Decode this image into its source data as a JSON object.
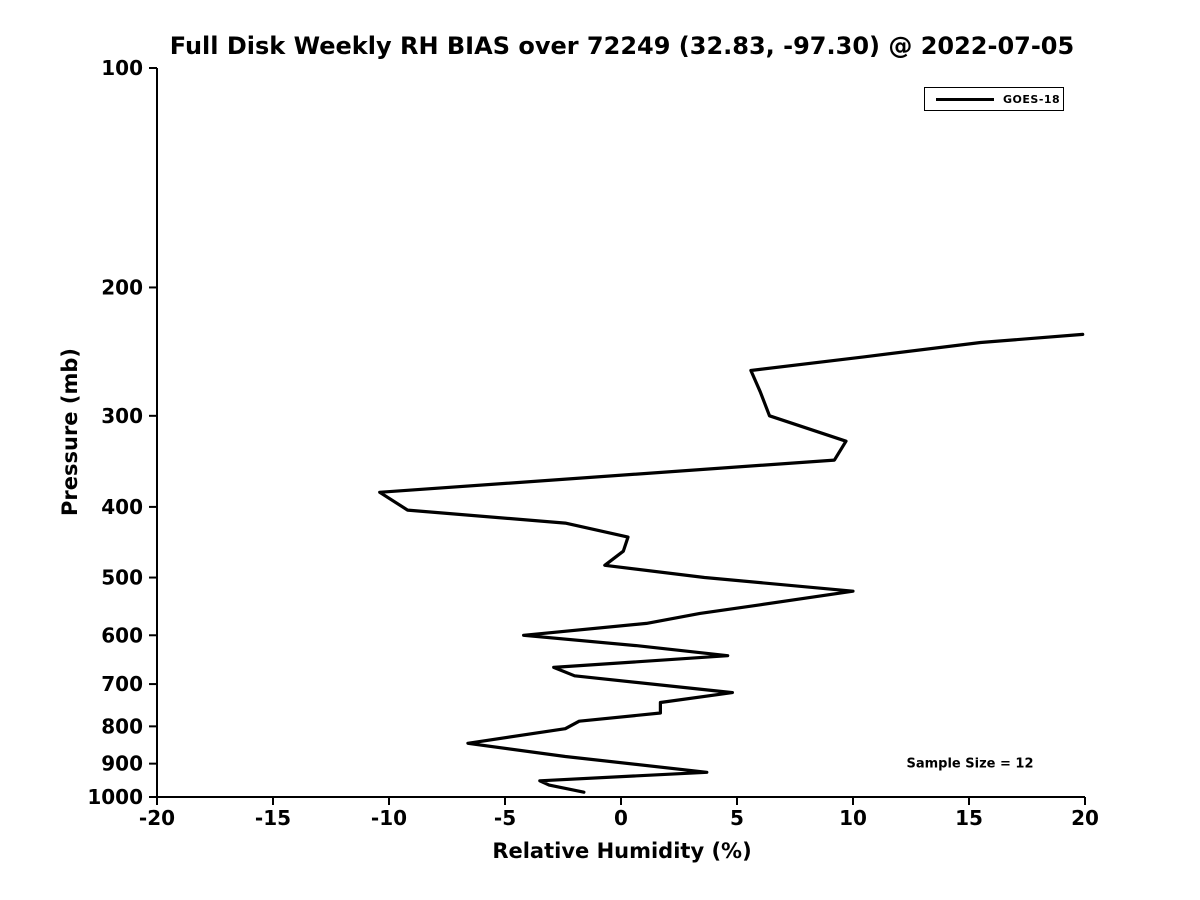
{
  "header": {
    "title": "Full Disk Weekly RH BIAS over 72249 (32.83, -97.30) @ 2022-07-05"
  },
  "annotations": {
    "sample_size_label": "Sample Size = 12"
  },
  "legend": {
    "position": "upper right",
    "entries": [
      {
        "label": "GOES-18",
        "color": "#000000"
      }
    ]
  },
  "colors": {
    "background": "#ffffff",
    "line": "#000000",
    "text": "#000000",
    "axis": "#000000"
  },
  "chart_data": {
    "type": "line",
    "title": "Full Disk Weekly RH BIAS over 72249 (32.83, -97.30) @ 2022-07-05",
    "xlabel": "Relative Humidity (%)",
    "ylabel": "Pressure (mb)",
    "xlim": [
      -20,
      20
    ],
    "ylim": [
      1000,
      100
    ],
    "yscale": "log",
    "y_inverted": true,
    "grid": false,
    "legend_position": "upper right",
    "x_ticks": [
      -20,
      -15,
      -10,
      -5,
      0,
      5,
      10,
      15,
      20
    ],
    "y_ticks": [
      100,
      200,
      300,
      400,
      500,
      600,
      700,
      800,
      900,
      1000
    ],
    "sample_size": 12,
    "series": [
      {
        "name": "GOES-18",
        "color": "#000000",
        "points_format": [
          "rh_bias_percent",
          "pressure_mb"
        ],
        "points": [
          [
            19.9,
            232
          ],
          [
            15.5,
            238
          ],
          [
            10.5,
            249
          ],
          [
            5.6,
            260
          ],
          [
            6.0,
            278
          ],
          [
            6.4,
            300
          ],
          [
            9.7,
            325
          ],
          [
            9.2,
            345
          ],
          [
            -10.4,
            382
          ],
          [
            -9.2,
            404
          ],
          [
            -2.4,
            421
          ],
          [
            0.3,
            440
          ],
          [
            0.1,
            460
          ],
          [
            -0.7,
            481
          ],
          [
            3.6,
            500
          ],
          [
            10.0,
            522
          ],
          [
            6.0,
            545
          ],
          [
            3.4,
            560
          ],
          [
            1.1,
            578
          ],
          [
            -4.2,
            600
          ],
          [
            0.7,
            620
          ],
          [
            4.6,
            640
          ],
          [
            -2.9,
            664
          ],
          [
            -2.0,
            682
          ],
          [
            4.8,
            719
          ],
          [
            1.7,
            742
          ],
          [
            1.7,
            767
          ],
          [
            -1.8,
            787
          ],
          [
            -2.4,
            806
          ],
          [
            -6.6,
            844
          ],
          [
            -2.4,
            880
          ],
          [
            3.7,
            925
          ],
          [
            -3.5,
            950
          ],
          [
            -3.1,
            963
          ],
          [
            -1.6,
            985
          ]
        ]
      }
    ]
  }
}
